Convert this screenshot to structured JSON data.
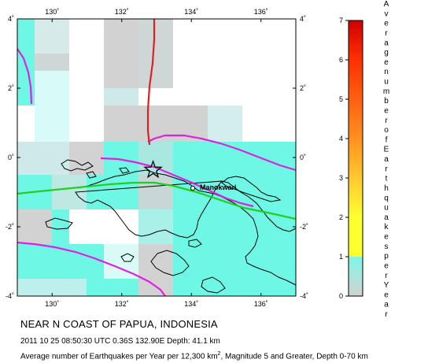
{
  "map": {
    "lon_range": [
      129,
      137
    ],
    "lat_range": [
      -4,
      4
    ],
    "x_ticks": [
      "130˚",
      "132˚",
      "134˚",
      "136˚"
    ],
    "y_ticks": [
      "4˚",
      "2˚",
      "0˚",
      "-2˚",
      "-4˚"
    ],
    "place_label": "Manokwari",
    "epicenter": {
      "lon": 132.9,
      "lat": -0.36
    },
    "colors": {
      "low": "#6ff7e6",
      "mid": "#d2d2d2",
      "plate_boundary": "#e020e0",
      "fault": "#e02020",
      "trench": "#20d020",
      "coast": "#000000"
    }
  },
  "colorbar": {
    "ticks": [
      "0",
      "1",
      "2",
      "3",
      "4",
      "5",
      "6",
      "7"
    ],
    "label": "Average number of Earthquakes per Year",
    "colors": [
      "#d2d2d2",
      "#7ff7e7",
      "#ffff30",
      "#ffc830",
      "#ff9020",
      "#ff6010",
      "#ff3000",
      "#d00000"
    ]
  },
  "text": {
    "title": "NEAR N COAST OF PAPUA, INDONESIA",
    "subtitle": "2011 10 25 08:50:30 UTC 0.36S 132.90E Depth: 41.1 km",
    "caption_pre": "Average number of Earthquakes per Year per 12,300 km",
    "caption_sup": "2",
    "caption_post": ", Magnitude 5 and Greater, Depth 0-70 km"
  }
}
